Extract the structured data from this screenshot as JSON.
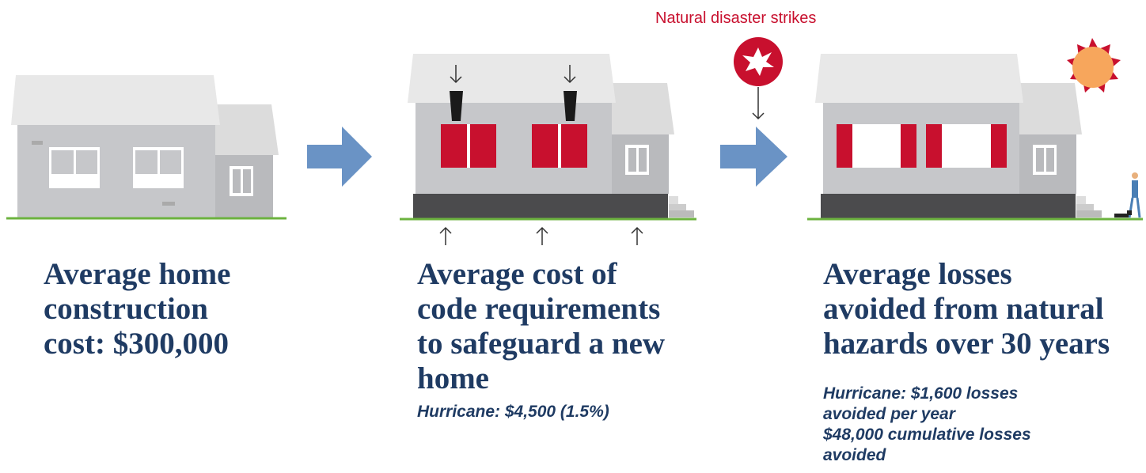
{
  "event_label": "Natural disaster strikes",
  "panels": [
    {
      "title_lines": [
        "Average home",
        "construction",
        "cost: $300,000"
      ],
      "detail_lines": []
    },
    {
      "title_lines": [
        "Average cost of",
        "code requirements",
        "to safeguard a new",
        "home"
      ],
      "detail_lines": [
        "Hurricane: $4,500 (1.5%)"
      ]
    },
    {
      "title_lines": [
        "Average losses",
        "avoided from natural",
        "hazards over 30 years"
      ],
      "detail_lines": [
        "Hurricane: $1,600 losses",
        "avoided per year",
        "$48,000 cumulative losses",
        "avoided"
      ]
    }
  ]
}
